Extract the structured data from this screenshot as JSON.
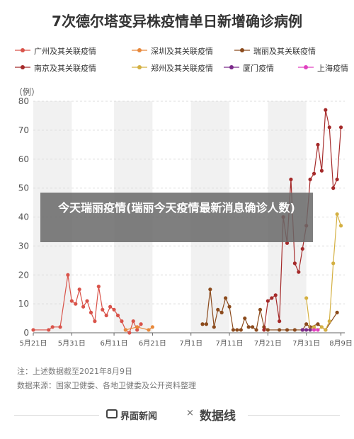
{
  "title": "7次德尔塔变异株疫情单日新增确诊病例",
  "unit_label": "（例）",
  "overlay_text": "今天瑞丽疫情(瑞丽今天疫情最新消息确诊人数)",
  "notes": [
    "注：上述数据截至2021年8月9日",
    "数据来源：国家卫健委、各地卫健委及公开资料整理"
  ],
  "footer": {
    "brand1": "界面新闻",
    "separator": "×",
    "brand2": "数据线"
  },
  "chart_data": {
    "type": "line",
    "title": "7次德尔塔变异株疫情单日新增确诊病例",
    "ylabel": "（例）",
    "ylim": [
      0,
      80
    ],
    "yticks": [
      0,
      10,
      20,
      30,
      40,
      50,
      60,
      70,
      80
    ],
    "x_start": "2021-05-21",
    "x_end": "2021-08-10",
    "x_tick_dates": [
      "2021-05-21",
      "2021-05-31",
      "2021-06-11",
      "2021-06-21",
      "2021-07-01",
      "2021-07-11",
      "2021-07-21",
      "2021-07-31",
      "2021-08-09"
    ],
    "x_tick_labels": [
      "5月21日",
      "5月31日",
      "6月11日",
      "6月21日",
      "7月1日",
      "7月11日",
      "7月21日",
      "7月31日",
      "8月9日"
    ],
    "grid": true,
    "legend_position": "top",
    "series": [
      {
        "name": "广州及其关联疫情",
        "color": "#d9534a",
        "points": [
          [
            "2021-05-21",
            1
          ],
          [
            "2021-05-25",
            1
          ],
          [
            "2021-05-26",
            2
          ],
          [
            "2021-05-28",
            2
          ],
          [
            "2021-05-30",
            20
          ],
          [
            "2021-05-31",
            11
          ],
          [
            "2021-06-01",
            10
          ],
          [
            "2021-06-02",
            15
          ],
          [
            "2021-06-03",
            9
          ],
          [
            "2021-06-04",
            11
          ],
          [
            "2021-06-05",
            7
          ],
          [
            "2021-06-06",
            4
          ],
          [
            "2021-06-07",
            16
          ],
          [
            "2021-06-08",
            8
          ],
          [
            "2021-06-09",
            6
          ],
          [
            "2021-06-10",
            9
          ],
          [
            "2021-06-11",
            8
          ],
          [
            "2021-06-12",
            6
          ],
          [
            "2021-06-13",
            4
          ],
          [
            "2021-06-14",
            1
          ],
          [
            "2021-06-15",
            0
          ],
          [
            "2021-06-16",
            4
          ],
          [
            "2021-06-17",
            1
          ],
          [
            "2021-06-18",
            3
          ]
        ]
      },
      {
        "name": "深圳及其关联疫情",
        "color": "#e8883a",
        "points": [
          [
            "2021-06-14",
            1
          ],
          [
            "2021-06-17",
            2
          ],
          [
            "2021-06-20",
            1
          ],
          [
            "2021-06-21",
            2
          ]
        ]
      },
      {
        "name": "瑞丽及其关联疫情",
        "color": "#8b4a1c",
        "points": [
          [
            "2021-07-04",
            3
          ],
          [
            "2021-07-05",
            3
          ],
          [
            "2021-07-06",
            15
          ],
          [
            "2021-07-07",
            2
          ],
          [
            "2021-07-08",
            8
          ],
          [
            "2021-07-09",
            7
          ],
          [
            "2021-07-10",
            12
          ],
          [
            "2021-07-11",
            9
          ],
          [
            "2021-07-12",
            1
          ],
          [
            "2021-07-13",
            1
          ],
          [
            "2021-07-14",
            1
          ],
          [
            "2021-07-15",
            5
          ],
          [
            "2021-07-16",
            2
          ],
          [
            "2021-07-17",
            2
          ],
          [
            "2021-07-18",
            1
          ],
          [
            "2021-07-19",
            8
          ],
          [
            "2021-07-20",
            2
          ],
          [
            "2021-07-21",
            1
          ],
          [
            "2021-07-24",
            1
          ],
          [
            "2021-07-26",
            1
          ],
          [
            "2021-07-28",
            1
          ],
          [
            "2021-07-30",
            1
          ],
          [
            "2021-07-31",
            3
          ],
          [
            "2021-08-01",
            2
          ],
          [
            "2021-08-03",
            3
          ],
          [
            "2021-08-05",
            1
          ],
          [
            "2021-08-08",
            7
          ]
        ]
      },
      {
        "name": "南京及其关联疫情",
        "color": "#a52a2a",
        "points": [
          [
            "2021-07-20",
            1
          ],
          [
            "2021-07-21",
            11
          ],
          [
            "2021-07-22",
            12
          ],
          [
            "2021-07-23",
            13
          ],
          [
            "2021-07-24",
            4
          ],
          [
            "2021-07-25",
            40
          ],
          [
            "2021-07-26",
            31
          ],
          [
            "2021-07-27",
            53
          ],
          [
            "2021-07-28",
            24
          ],
          [
            "2021-07-29",
            21
          ],
          [
            "2021-07-30",
            29
          ],
          [
            "2021-07-31",
            37
          ],
          [
            "2021-08-01",
            53
          ],
          [
            "2021-08-02",
            55
          ],
          [
            "2021-08-03",
            65
          ],
          [
            "2021-08-04",
            56
          ],
          [
            "2021-08-05",
            77
          ],
          [
            "2021-08-06",
            71
          ],
          [
            "2021-08-07",
            50
          ],
          [
            "2021-08-08",
            53
          ],
          [
            "2021-08-09",
            71
          ]
        ]
      },
      {
        "name": "郑州及其关联疫情",
        "color": "#d4b042",
        "points": [
          [
            "2021-07-31",
            12
          ],
          [
            "2021-08-01",
            1
          ],
          [
            "2021-08-02",
            2
          ],
          [
            "2021-08-03",
            1
          ],
          [
            "2021-08-04",
            2
          ],
          [
            "2021-08-05",
            1
          ],
          [
            "2021-08-06",
            4
          ],
          [
            "2021-08-07",
            24
          ],
          [
            "2021-08-08",
            41
          ],
          [
            "2021-08-09",
            37
          ]
        ]
      },
      {
        "name": "厦门疫情",
        "color": "#7b2a8a",
        "points": [
          [
            "2021-07-30",
            1
          ],
          [
            "2021-07-31",
            1
          ],
          [
            "2021-08-01",
            1
          ]
        ]
      },
      {
        "name": "上海疫情",
        "color": "#e040c0",
        "points": [
          [
            "2021-08-02",
            1
          ],
          [
            "2021-08-03",
            1
          ]
        ]
      }
    ]
  }
}
